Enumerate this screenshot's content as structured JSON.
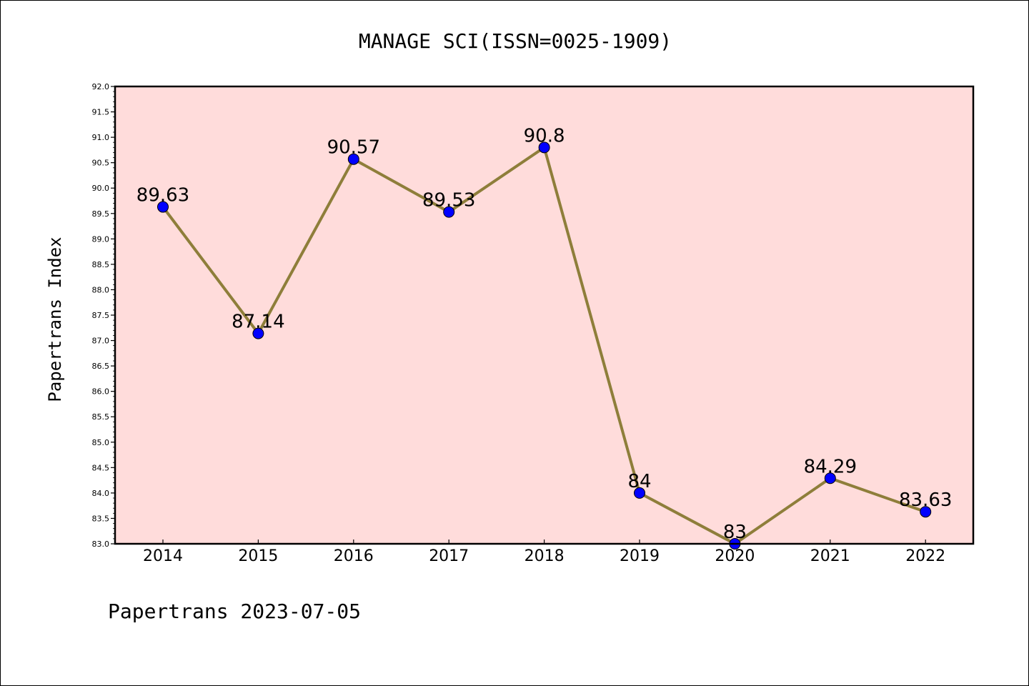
{
  "chart_data": {
    "type": "line",
    "title": "MANAGE SCI(ISSN=0025-1909)",
    "ylabel": "Papertrans Index",
    "xlabel": "",
    "footer": "Papertrans 2023-07-05",
    "categories": [
      "2014",
      "2015",
      "2016",
      "2017",
      "2018",
      "2019",
      "2020",
      "2021",
      "2022"
    ],
    "values": [
      89.63,
      87.14,
      90.57,
      89.53,
      90.8,
      84,
      83,
      84.29,
      83.63
    ],
    "data_labels": [
      "89.63",
      "87.14",
      "90.57",
      "89.53",
      "90.8",
      "84",
      "83",
      "84.29",
      "83.63"
    ],
    "ylim": [
      83.0,
      92.0
    ],
    "yticks": [
      "83.0",
      "83.5",
      "84.0",
      "84.5",
      "85.0",
      "85.5",
      "86.0",
      "86.5",
      "87.0",
      "87.5",
      "88.0",
      "88.5",
      "89.0",
      "89.5",
      "90.0",
      "90.5",
      "91.0",
      "91.5",
      "92.0"
    ],
    "grid": false,
    "colors": {
      "plot_background": "#ffdcdb",
      "line": "#8e7e3a",
      "marker": "#0000ff"
    }
  }
}
